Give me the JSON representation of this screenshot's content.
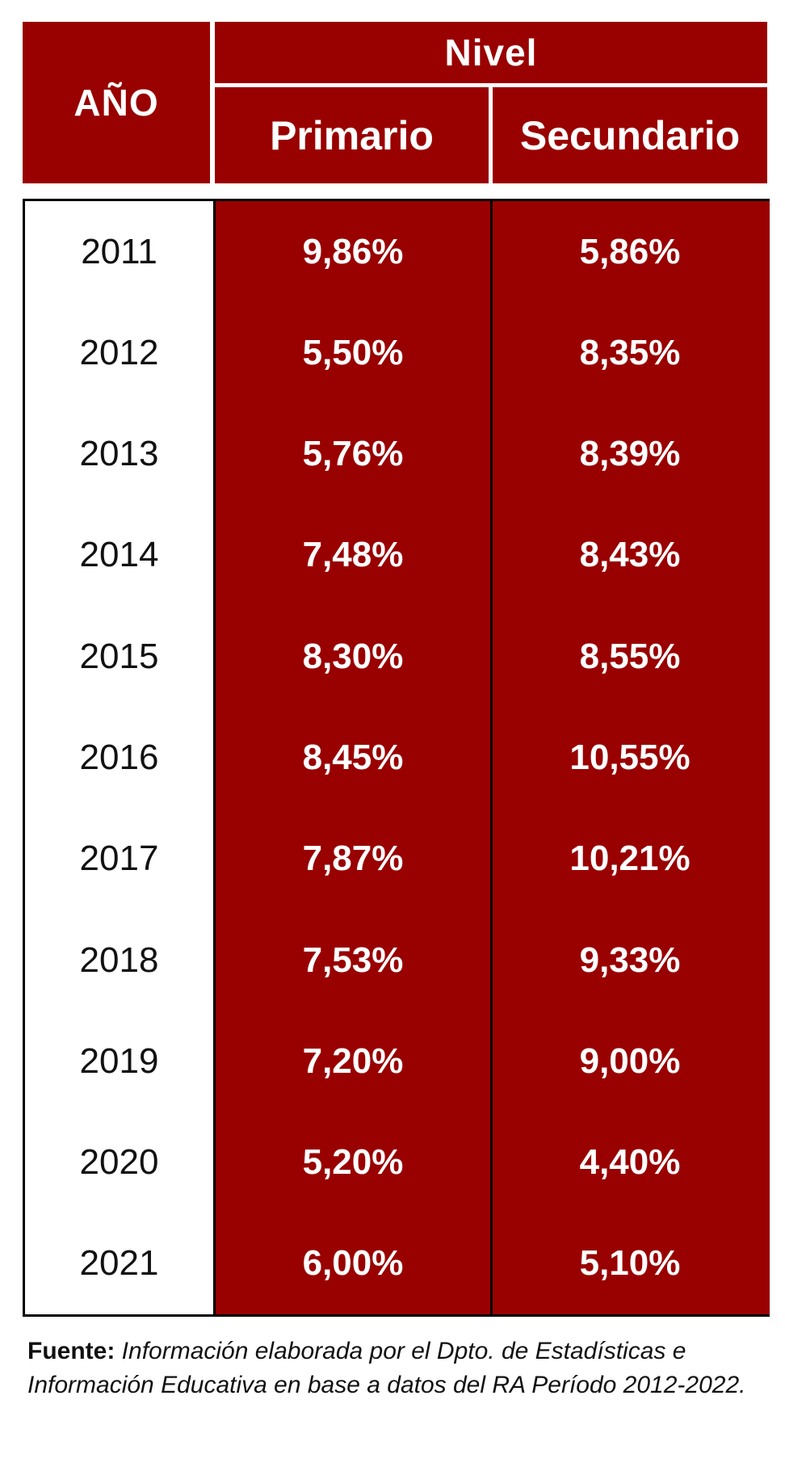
{
  "table": {
    "header_year": "AÑO",
    "header_group": "Nivel",
    "header_primario": "Primario",
    "header_secundario": "Secundario"
  },
  "chart_data": {
    "type": "table",
    "columns": [
      "AÑO",
      "Primario",
      "Secundario"
    ],
    "group_header": "Nivel",
    "rows": [
      {
        "year": "2011",
        "primario": "9,86%",
        "secundario": "5,86%"
      },
      {
        "year": "2012",
        "primario": "5,50%",
        "secundario": "8,35%"
      },
      {
        "year": "2013",
        "primario": "5,76%",
        "secundario": "8,39%"
      },
      {
        "year": "2014",
        "primario": "7,48%",
        "secundario": "8,43%"
      },
      {
        "year": "2015",
        "primario": "8,30%",
        "secundario": "8,55%"
      },
      {
        "year": "2016",
        "primario": "8,45%",
        "secundario": "10,55%"
      },
      {
        "year": "2017",
        "primario": "7,87%",
        "secundario": "10,21%"
      },
      {
        "year": "2018",
        "primario": "7,53%",
        "secundario": "9,33%"
      },
      {
        "year": "2019",
        "primario": "7,20%",
        "secundario": "9,00%"
      },
      {
        "year": "2020",
        "primario": "5,20%",
        "secundario": "4,40%"
      },
      {
        "year": "2021",
        "primario": "6,00%",
        "secundario": "5,10%"
      }
    ]
  },
  "source": {
    "label": "Fuente:",
    "text": "Información elaborada por el Dpto. de Estadísticas e Información Educativa en base a datos del RA Período 2012-2022."
  },
  "colors": {
    "header_bg": "#990000",
    "data_bg": "#990000",
    "header_text": "#ffffff",
    "year_text": "#111111",
    "border": "#000000"
  }
}
